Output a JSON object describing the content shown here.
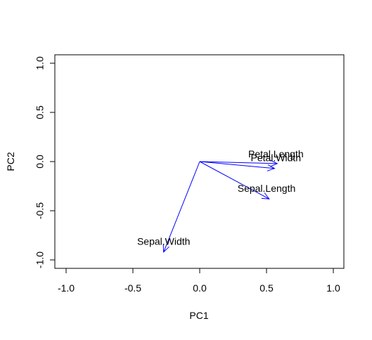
{
  "chart_data": {
    "type": "biplot-loadings",
    "title": "",
    "xlabel": "PC1",
    "ylabel": "PC2",
    "xlim": [
      -1.0,
      1.0
    ],
    "ylim": [
      -1.0,
      1.0
    ],
    "x_ticks": [
      -1.0,
      -0.5,
      0.0,
      0.5,
      1.0
    ],
    "x_tick_labels": [
      "-1.0",
      "-0.5",
      "0.0",
      "0.5",
      "1.0"
    ],
    "y_ticks": [
      -1.0,
      -0.5,
      0.0,
      0.5,
      1.0
    ],
    "y_tick_labels": [
      "-1.0",
      "-0.5",
      "0.0",
      "0.5",
      "1.0"
    ],
    "grid": false,
    "legend": "none",
    "arrow_color": "#0000ff",
    "origin": [
      0.0,
      0.0
    ],
    "vectors": [
      {
        "name": "Sepal.Length",
        "x": 0.52,
        "y": -0.38
      },
      {
        "name": "Sepal.Width",
        "x": -0.27,
        "y": -0.92
      },
      {
        "name": "Petal.Length",
        "x": 0.58,
        "y": -0.02
      },
      {
        "name": "Petal.Width",
        "x": 0.56,
        "y": -0.07
      }
    ],
    "labels": [
      {
        "text": "Sepal.Length",
        "x": 0.5,
        "y": -0.28
      },
      {
        "text": "Sepal.Width",
        "x": -0.27,
        "y": -0.82
      },
      {
        "text": "Petal.Length",
        "x": 0.57,
        "y": 0.07
      },
      {
        "text": "Petal.Width",
        "x": 0.57,
        "y": 0.03
      }
    ]
  }
}
